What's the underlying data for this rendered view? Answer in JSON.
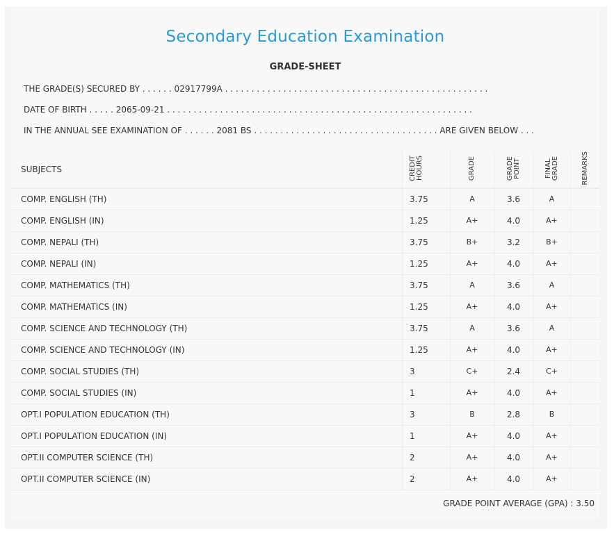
{
  "header": {
    "title": "Secondary Education Examination",
    "subtitle": "GRADE-SHEET"
  },
  "info": {
    "line1": "THE GRADE(S) SECURED BY . . . . . . 02917799A . . . . . . . . . . . . . . . . . . . . . . . . . . . . . . . . . . . . . . . . . . . . . . . . . .",
    "line2": "DATE OF BIRTH . . . . . 2065-09-21 . . . . . . . . . . . . . . . . . . . . . . . . . . . . . . . . . . . . . . . . . . . . . . . . . . . . . . . . . .",
    "line3": "IN THE ANNUAL SEE EXAMINATION OF . . . . . . 2081 BS . . . . . . . . . . . . . . . . . . . . . . . . . . . . . . . . . . . ARE GIVEN BELOW . . ."
  },
  "table": {
    "headers": {
      "subjects": "SUBJECTS",
      "credit_hours": "CREDIT\nHOURS",
      "grade": "GRADE",
      "grade_point": "GRADE\nPOINT",
      "final_grade": "FINAL\nGRADE",
      "remarks": "REMARKS"
    },
    "rows": [
      {
        "subject": "COMP. ENGLISH (TH)",
        "credit": "3.75",
        "grade": "A",
        "gp": "3.6",
        "final": "A",
        "remarks": ""
      },
      {
        "subject": "COMP. ENGLISH (IN)",
        "credit": "1.25",
        "grade": "A+",
        "gp": "4.0",
        "final": "A+",
        "remarks": ""
      },
      {
        "subject": "COMP. NEPALI (TH)",
        "credit": "3.75",
        "grade": "B+",
        "gp": "3.2",
        "final": "B+",
        "remarks": ""
      },
      {
        "subject": "COMP. NEPALI (IN)",
        "credit": "1.25",
        "grade": "A+",
        "gp": "4.0",
        "final": "A+",
        "remarks": ""
      },
      {
        "subject": "COMP. MATHEMATICS (TH)",
        "credit": "3.75",
        "grade": "A",
        "gp": "3.6",
        "final": "A",
        "remarks": ""
      },
      {
        "subject": "COMP. MATHEMATICS (IN)",
        "credit": "1.25",
        "grade": "A+",
        "gp": "4.0",
        "final": "A+",
        "remarks": ""
      },
      {
        "subject": "COMP. SCIENCE AND TECHNOLOGY (TH)",
        "credit": "3.75",
        "grade": "A",
        "gp": "3.6",
        "final": "A",
        "remarks": ""
      },
      {
        "subject": "COMP. SCIENCE AND TECHNOLOGY (IN)",
        "credit": "1.25",
        "grade": "A+",
        "gp": "4.0",
        "final": "A+",
        "remarks": ""
      },
      {
        "subject": "COMP. SOCIAL STUDIES (TH)",
        "credit": "3",
        "grade": "C+",
        "gp": "2.4",
        "final": "C+",
        "remarks": ""
      },
      {
        "subject": "COMP. SOCIAL STUDIES (IN)",
        "credit": "1",
        "grade": "A+",
        "gp": "4.0",
        "final": "A+",
        "remarks": ""
      },
      {
        "subject": "OPT.I POPULATION EDUCATION (TH)",
        "credit": "3",
        "grade": "B",
        "gp": "2.8",
        "final": "B",
        "remarks": ""
      },
      {
        "subject": "OPT.I POPULATION EDUCATION (IN)",
        "credit": "1",
        "grade": "A+",
        "gp": "4.0",
        "final": "A+",
        "remarks": ""
      },
      {
        "subject": "OPT.II COMPUTER SCIENCE (TH)",
        "credit": "2",
        "grade": "A+",
        "gp": "4.0",
        "final": "A+",
        "remarks": ""
      },
      {
        "subject": "OPT.II COMPUTER SCIENCE (IN)",
        "credit": "2",
        "grade": "A+",
        "gp": "4.0",
        "final": "A+",
        "remarks": ""
      }
    ]
  },
  "summary": {
    "gpa": "GRADE POINT AVERAGE (GPA) : 3.50"
  },
  "colors": {
    "title": "#2a9ad8",
    "background": "#f5f5f5"
  }
}
